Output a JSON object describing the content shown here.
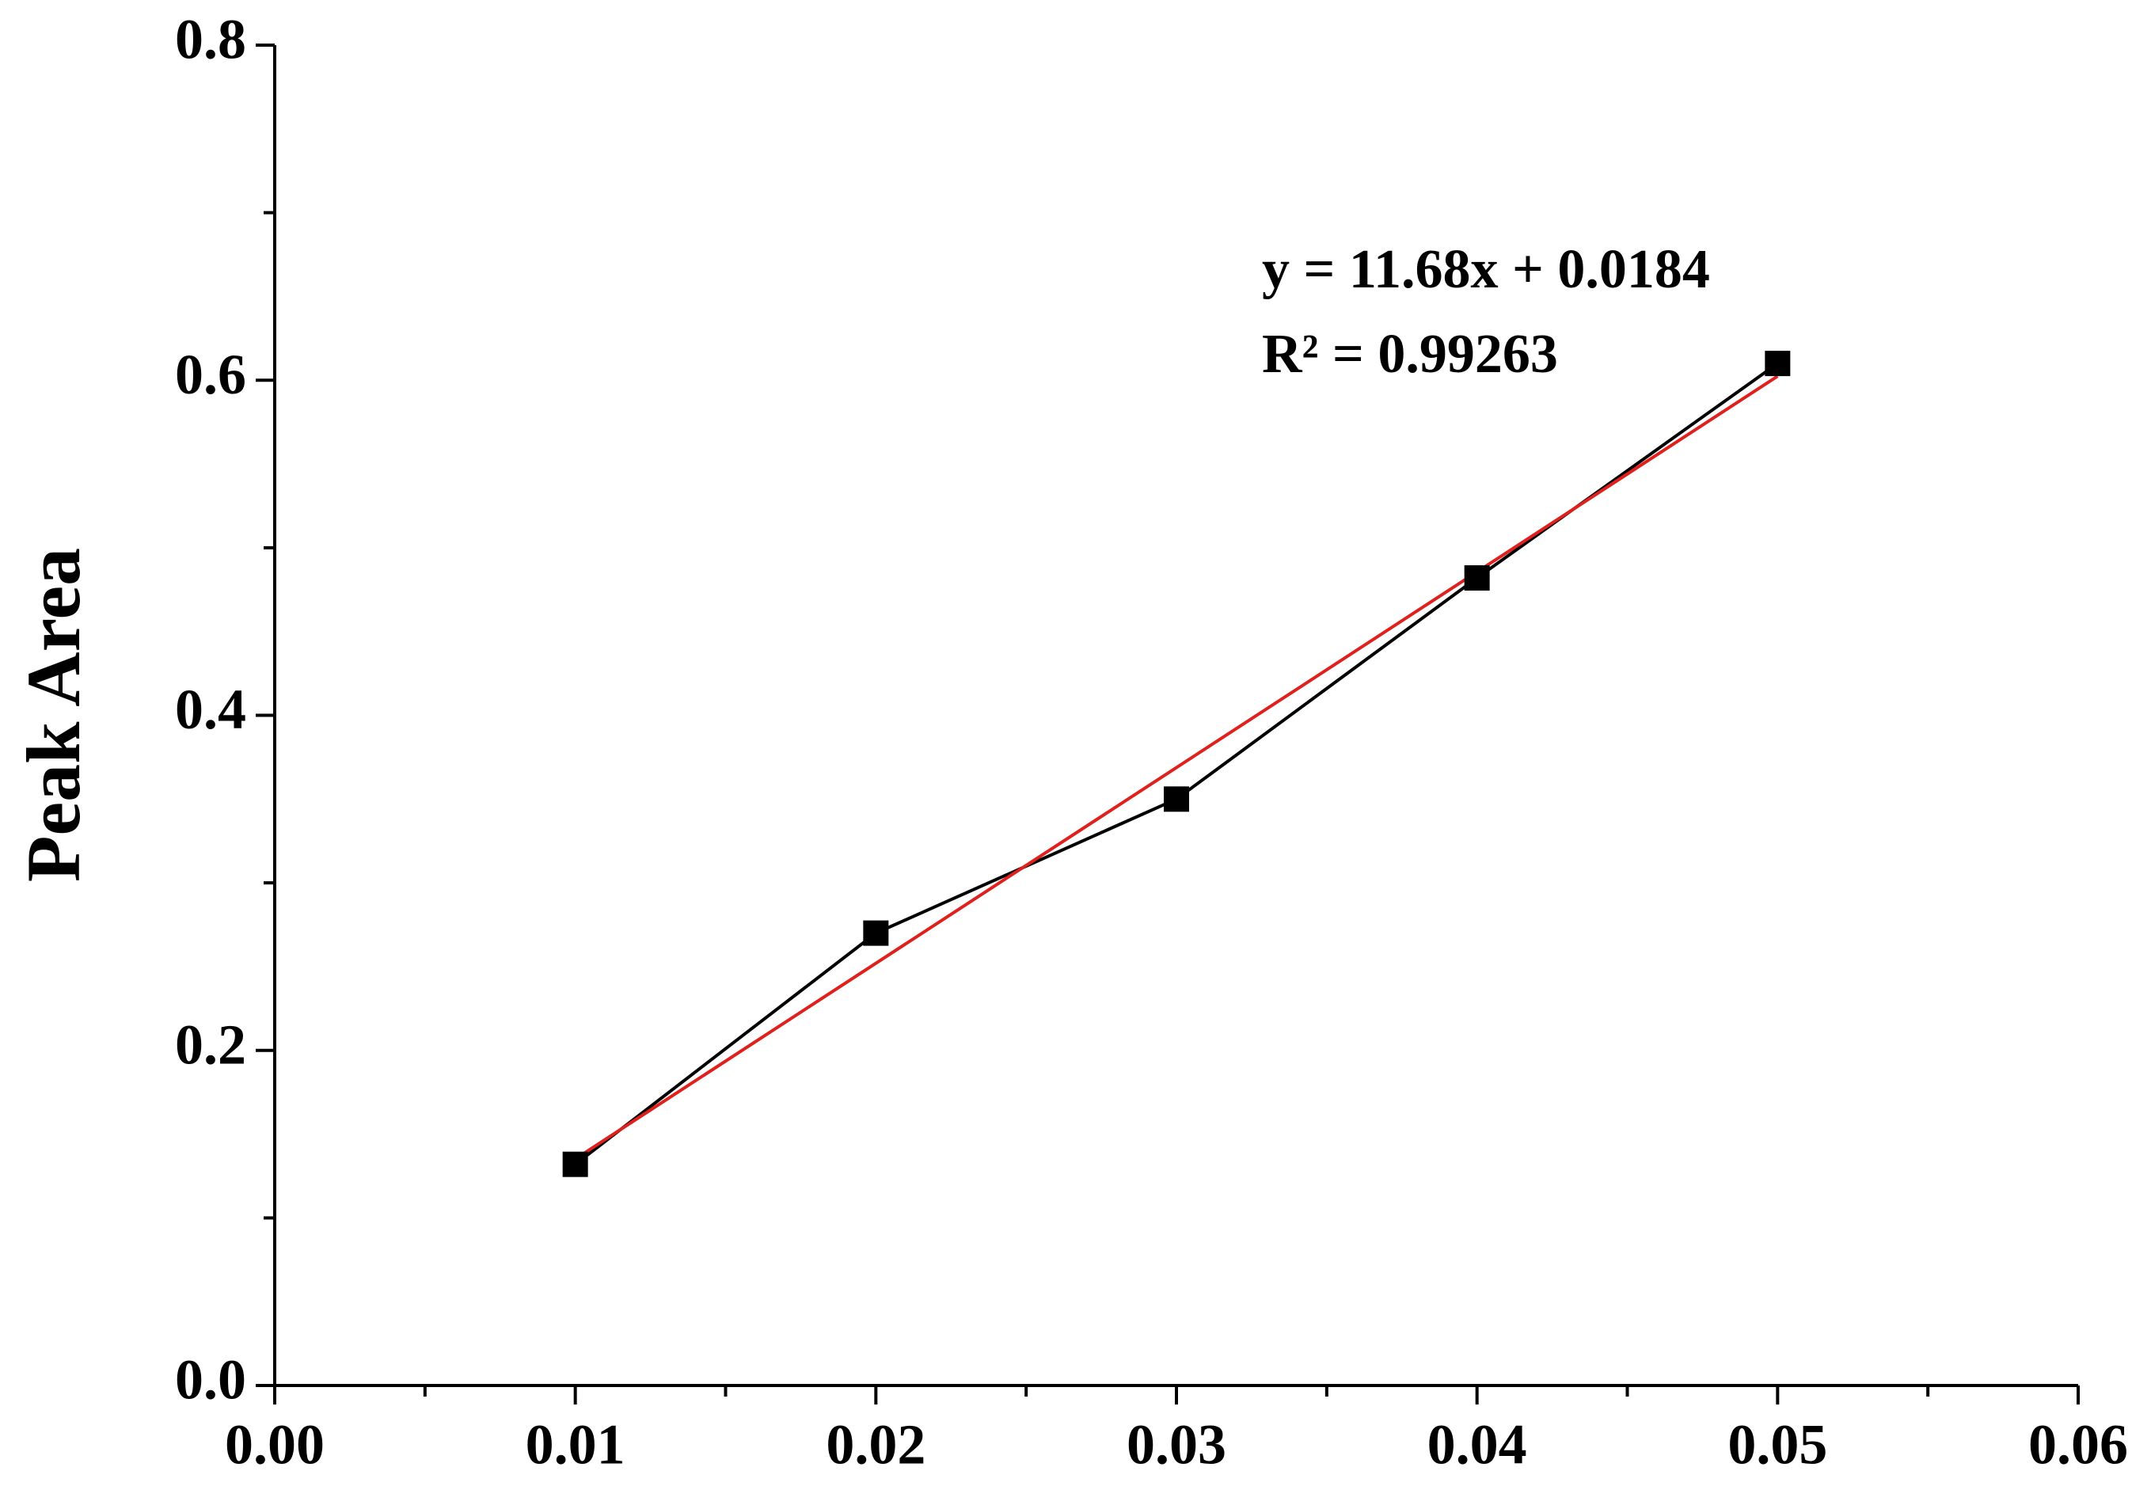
{
  "chart_data": {
    "type": "scatter",
    "ylabel": "Peak Area",
    "annotations": [
      "y = 11.68x + 0.0184",
      "R² = 0.99263"
    ],
    "series": [
      {
        "color": "#000000",
        "marker": "square",
        "line": true,
        "x": [
          0.01,
          0.02,
          0.03,
          0.04,
          0.05
        ],
        "values": [
          0.132,
          0.27,
          0.35,
          0.482,
          0.61
        ]
      },
      {
        "color": "#e0201c",
        "marker": "none",
        "line": true,
        "x": [
          0.01,
          0.05
        ],
        "values": [
          0.1352,
          0.6024
        ]
      }
    ],
    "xlim": [
      0,
      0.06
    ],
    "xticks": [
      {
        "value": 0,
        "label": "0.00"
      },
      {
        "value": 0.01,
        "label": "0.01"
      },
      {
        "value": 0.02,
        "label": "0.02"
      },
      {
        "value": 0.03,
        "label": "0.03"
      },
      {
        "value": 0.04,
        "label": "0.04"
      },
      {
        "value": 0.05,
        "label": "0.05"
      },
      {
        "value": 0.06,
        "label": "0.06"
      }
    ],
    "xminorticks": [
      0.005,
      0.015,
      0.025,
      0.035,
      0.045,
      0.055
    ],
    "ylim": [
      0,
      0.8
    ],
    "yticks": [
      {
        "value": 0,
        "label": "0.0"
      },
      0.2,
      0.4,
      0.6,
      0.8
    ],
    "yminorticks": [
      0.1,
      0.3,
      0.5,
      0.7
    ],
    "grid": false
  }
}
